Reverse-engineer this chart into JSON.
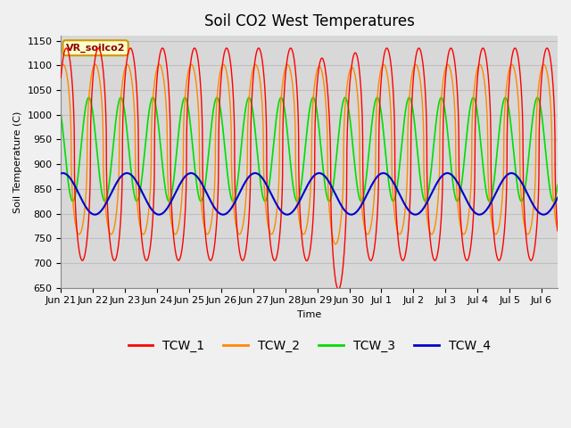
{
  "title": "Soil CO2 West Temperatures",
  "ylabel": "Soil Temperature (C)",
  "xlabel": "Time",
  "annotation": "VR_soilco2",
  "ylim": [
    650,
    1160
  ],
  "yticks": [
    650,
    700,
    750,
    800,
    850,
    900,
    950,
    1000,
    1050,
    1100,
    1150
  ],
  "xlim": [
    0,
    15.5
  ],
  "background_color": "#d8d8d8",
  "fig_background": "#f0f0f0",
  "series": {
    "TCW_1": {
      "color": "#ff0000"
    },
    "TCW_2": {
      "color": "#ff8800"
    },
    "TCW_3": {
      "color": "#00dd00"
    },
    "TCW_4": {
      "color": "#0000cc"
    }
  },
  "xtick_labels": [
    "Jun 21",
    "Jun 22",
    "Jun 23",
    "Jun 24",
    "Jun 25",
    "Jun 26",
    "Jun 27",
    "Jun 28",
    "Jun 29",
    "Jun 30",
    "Jul 1",
    "Jul 2",
    "Jul 3",
    "Jul 4",
    "Jul 5",
    "Jul 6"
  ],
  "xtick_positions": [
    0,
    1,
    2,
    3,
    4,
    5,
    6,
    7,
    8,
    9,
    10,
    11,
    12,
    13,
    14,
    15
  ],
  "grid_color": "#c0c0c0",
  "title_fontsize": 12,
  "legend_fontsize": 10,
  "tick_fontsize": 8
}
